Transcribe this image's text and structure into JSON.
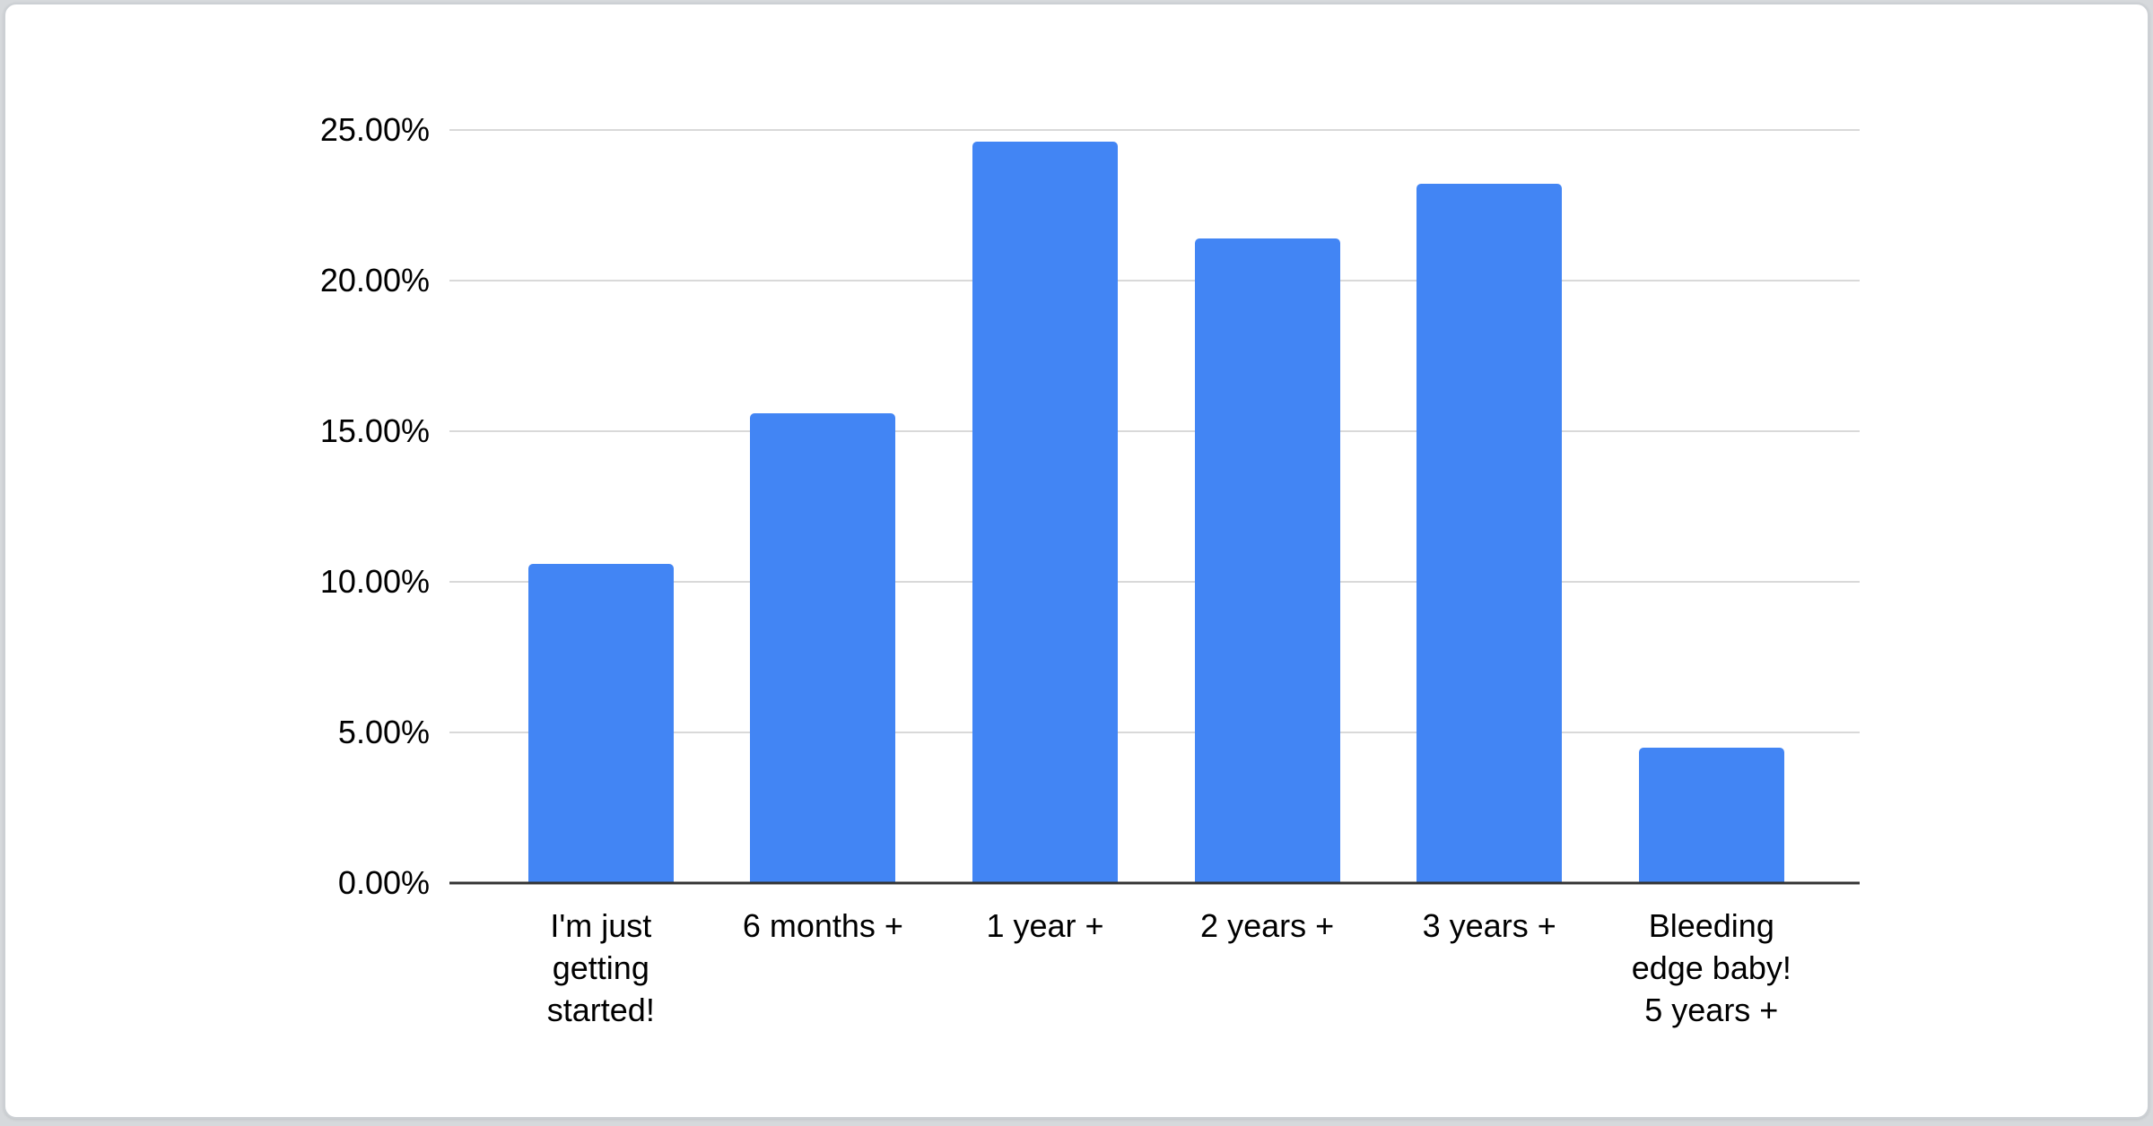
{
  "page": {
    "background_color": "#d6d9dc",
    "card_color": "#ffffff",
    "card_border_color": "#ccd0d4"
  },
  "chart_data": {
    "type": "bar",
    "title": "",
    "xlabel": "",
    "ylabel": "",
    "categories": [
      "I'm just getting started!",
      "6 months +",
      "1 year +",
      "2 years +",
      "3 years +",
      "Bleeding edge baby! 5 years +"
    ],
    "category_lines": [
      [
        "I'm just",
        "getting",
        "started!"
      ],
      [
        "6 months +"
      ],
      [
        "1 year +"
      ],
      [
        "2 years +"
      ],
      [
        "3 years +"
      ],
      [
        "Bleeding",
        "edge baby!",
        "5 years +"
      ]
    ],
    "values": [
      10.6,
      15.6,
      24.6,
      21.4,
      23.2,
      4.5
    ],
    "unit": "%",
    "ylim": [
      0,
      25
    ],
    "y_ticks": [
      0,
      5,
      10,
      15,
      20,
      25
    ],
    "y_tick_labels": [
      "0.00%",
      "5.00%",
      "10.00%",
      "15.00%",
      "20.00%",
      "25.00%"
    ],
    "grid": true,
    "legend": "none",
    "bar_color": "#4285f4",
    "gridline_color": "#d9d9d9",
    "axis_line_color": "#333333",
    "label_color": "#000000"
  }
}
